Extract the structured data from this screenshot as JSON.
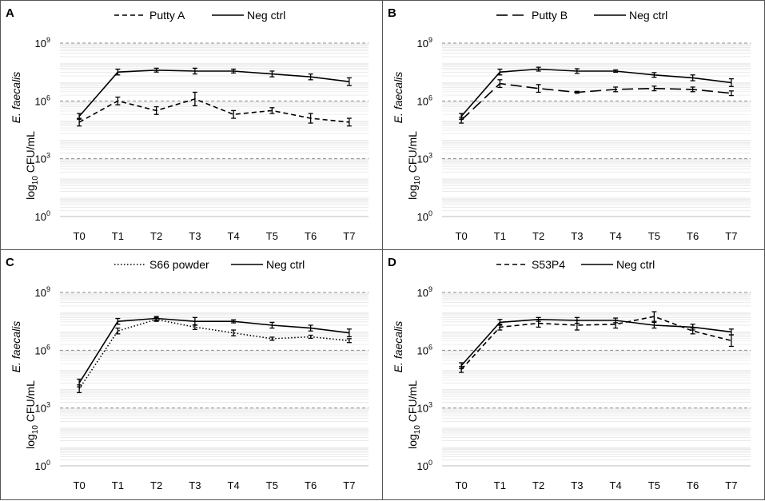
{
  "figure": {
    "x_categories": [
      "T0",
      "T1",
      "T2",
      "T3",
      "T4",
      "T5",
      "T6",
      "T7"
    ],
    "y_ticks": [
      {
        "base": "10",
        "exp": "9"
      },
      {
        "base": "10",
        "exp": "6"
      },
      {
        "base": "10",
        "exp": "3"
      },
      {
        "base": "10",
        "exp": "0"
      }
    ],
    "ylabel": {
      "line1_italic": "E. faecalis",
      "line2_prefix": "log",
      "line2_sub": "10",
      "line2_suffix": " CFU/mL"
    }
  },
  "chart_data": [
    {
      "panel": "A",
      "type": "line",
      "title": "",
      "xlabel": "",
      "ylabel": "E. faecalis log10 CFU/mL",
      "yscale": "log",
      "ylim_log10": [
        0,
        9
      ],
      "categories": [
        "T0",
        "T1",
        "T2",
        "T3",
        "T4",
        "T5",
        "T6",
        "T7"
      ],
      "legend_position": "top",
      "series": [
        {
          "name": "Putty A",
          "style": "dashed",
          "log10_values": [
            4.9,
            6.0,
            5.5,
            6.1,
            5.3,
            5.5,
            5.1,
            4.9
          ],
          "error_log10": [
            0.2,
            0.2,
            0.2,
            0.35,
            0.2,
            0.15,
            0.25,
            0.2
          ]
        },
        {
          "name": "Neg ctrl",
          "style": "solid",
          "log10_values": [
            5.2,
            7.5,
            7.6,
            7.55,
            7.55,
            7.4,
            7.25,
            7.0
          ],
          "error_log10": [
            0.15,
            0.15,
            0.1,
            0.15,
            0.1,
            0.15,
            0.15,
            0.2
          ]
        }
      ]
    },
    {
      "panel": "B",
      "type": "line",
      "title": "",
      "xlabel": "",
      "ylabel": "E. faecalis log10 CFU/mL",
      "yscale": "log",
      "ylim_log10": [
        0,
        9
      ],
      "categories": [
        "T0",
        "T1",
        "T2",
        "T3",
        "T4",
        "T5",
        "T6",
        "T7"
      ],
      "legend_position": "top",
      "series": [
        {
          "name": "Putty B",
          "style": "long-dashed",
          "log10_values": [
            5.0,
            6.9,
            6.65,
            6.45,
            6.6,
            6.65,
            6.6,
            6.4
          ],
          "error_log10": [
            0.15,
            0.2,
            0.2,
            0.05,
            0.12,
            0.12,
            0.12,
            0.12
          ]
        },
        {
          "name": "Neg ctrl",
          "style": "solid",
          "log10_values": [
            5.2,
            7.5,
            7.65,
            7.55,
            7.55,
            7.35,
            7.2,
            6.95
          ],
          "error_log10": [
            0.15,
            0.15,
            0.1,
            0.12,
            0.06,
            0.12,
            0.15,
            0.2
          ]
        }
      ]
    },
    {
      "panel": "C",
      "type": "line",
      "title": "",
      "xlabel": "",
      "ylabel": "E. faecalis log10 CFU/mL",
      "yscale": "log",
      "ylim_log10": [
        0,
        9
      ],
      "categories": [
        "T0",
        "T1",
        "T2",
        "T3",
        "T4",
        "T5",
        "T6",
        "T7"
      ],
      "legend_position": "top",
      "series": [
        {
          "name": "S66 powder",
          "style": "dotted",
          "log10_values": [
            4.0,
            7.0,
            7.6,
            7.2,
            6.9,
            6.6,
            6.7,
            6.5
          ],
          "error_log10": [
            0.2,
            0.15,
            0.1,
            0.12,
            0.15,
            0.08,
            0.08,
            0.1
          ]
        },
        {
          "name": "Neg ctrl",
          "style": "solid",
          "log10_values": [
            4.3,
            7.5,
            7.65,
            7.5,
            7.5,
            7.3,
            7.15,
            6.9
          ],
          "error_log10": [
            0.2,
            0.15,
            0.1,
            0.2,
            0.08,
            0.15,
            0.15,
            0.2
          ]
        }
      ]
    },
    {
      "panel": "D",
      "type": "line",
      "title": "",
      "xlabel": "",
      "ylabel": "E. faecalis log10 CFU/mL",
      "yscale": "log",
      "ylim_log10": [
        0,
        9
      ],
      "categories": [
        "T0",
        "T1",
        "T2",
        "T3",
        "T4",
        "T5",
        "T6",
        "T7"
      ],
      "legend_position": "top",
      "series": [
        {
          "name": "S53P4",
          "style": "dashed",
          "log10_values": [
            5.0,
            7.2,
            7.4,
            7.3,
            7.35,
            7.75,
            7.0,
            6.5
          ],
          "error_log10": [
            0.15,
            0.15,
            0.2,
            0.25,
            0.2,
            0.25,
            0.15,
            0.3
          ]
        },
        {
          "name": "Neg ctrl",
          "style": "solid",
          "log10_values": [
            5.2,
            7.45,
            7.6,
            7.55,
            7.55,
            7.3,
            7.2,
            6.95
          ],
          "error_log10": [
            0.15,
            0.15,
            0.1,
            0.15,
            0.12,
            0.15,
            0.15,
            0.15
          ]
        }
      ]
    }
  ]
}
